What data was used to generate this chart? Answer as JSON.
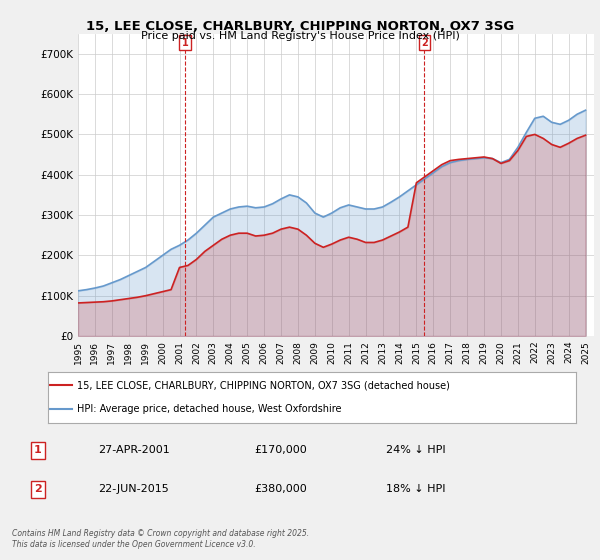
{
  "title": "15, LEE CLOSE, CHARLBURY, CHIPPING NORTON, OX7 3SG",
  "subtitle": "Price paid vs. HM Land Registry's House Price Index (HPI)",
  "bg_color": "#f0f0f0",
  "plot_bg_color": "#ffffff",
  "hpi_color": "#6699cc",
  "price_color": "#cc2222",
  "marker1_label": "1",
  "marker2_label": "2",
  "marker1_date": "27-APR-2001",
  "marker1_price": "£170,000",
  "marker1_pct": "24% ↓ HPI",
  "marker2_date": "22-JUN-2015",
  "marker2_price": "£380,000",
  "marker2_pct": "18% ↓ HPI",
  "legend1": "15, LEE CLOSE, CHARLBURY, CHIPPING NORTON, OX7 3SG (detached house)",
  "legend2": "HPI: Average price, detached house, West Oxfordshire",
  "footer": "Contains HM Land Registry data © Crown copyright and database right 2025.\nThis data is licensed under the Open Government Licence v3.0.",
  "ylim": [
    0,
    750000
  ],
  "yticks": [
    0,
    100000,
    200000,
    300000,
    400000,
    500000,
    600000,
    700000
  ],
  "ytick_labels": [
    "£0",
    "£100K",
    "£200K",
    "£300K",
    "£400K",
    "£500K",
    "£600K",
    "£700K"
  ],
  "xmin": 1995.0,
  "xmax": 2025.5,
  "marker1_x": 2001.32,
  "marker2_x": 2015.47,
  "hpi_x": [
    1995.0,
    1995.5,
    1996.0,
    1996.5,
    1997.0,
    1997.5,
    1998.0,
    1998.5,
    1999.0,
    1999.5,
    2000.0,
    2000.5,
    2001.0,
    2001.5,
    2002.0,
    2002.5,
    2003.0,
    2003.5,
    2004.0,
    2004.5,
    2005.0,
    2005.5,
    2006.0,
    2006.5,
    2007.0,
    2007.5,
    2008.0,
    2008.5,
    2009.0,
    2009.5,
    2010.0,
    2010.5,
    2011.0,
    2011.5,
    2012.0,
    2012.5,
    2013.0,
    2013.5,
    2014.0,
    2014.5,
    2015.0,
    2015.5,
    2016.0,
    2016.5,
    2017.0,
    2017.5,
    2018.0,
    2018.5,
    2019.0,
    2019.5,
    2020.0,
    2020.5,
    2021.0,
    2021.5,
    2022.0,
    2022.5,
    2023.0,
    2023.5,
    2024.0,
    2024.5,
    2025.0
  ],
  "hpi_y": [
    112000,
    115000,
    119000,
    124000,
    132000,
    140000,
    150000,
    160000,
    170000,
    185000,
    200000,
    215000,
    225000,
    238000,
    255000,
    275000,
    295000,
    305000,
    315000,
    320000,
    322000,
    318000,
    320000,
    328000,
    340000,
    350000,
    345000,
    330000,
    305000,
    295000,
    305000,
    318000,
    325000,
    320000,
    315000,
    315000,
    320000,
    332000,
    345000,
    360000,
    375000,
    390000,
    405000,
    420000,
    430000,
    435000,
    438000,
    440000,
    442000,
    440000,
    430000,
    438000,
    468000,
    505000,
    540000,
    545000,
    530000,
    525000,
    535000,
    550000,
    560000
  ],
  "price_x": [
    1995.0,
    1995.5,
    1996.0,
    1996.5,
    1997.0,
    1997.5,
    1998.0,
    1998.5,
    1999.0,
    1999.5,
    2000.0,
    2000.5,
    2001.0,
    2001.5,
    2002.0,
    2002.5,
    2003.0,
    2003.5,
    2004.0,
    2004.5,
    2005.0,
    2005.5,
    2006.0,
    2006.5,
    2007.0,
    2007.5,
    2008.0,
    2008.5,
    2009.0,
    2009.5,
    2010.0,
    2010.5,
    2011.0,
    2011.5,
    2012.0,
    2012.5,
    2013.0,
    2013.5,
    2014.0,
    2014.5,
    2015.0,
    2015.5,
    2016.0,
    2016.5,
    2017.0,
    2017.5,
    2018.0,
    2018.5,
    2019.0,
    2019.5,
    2020.0,
    2020.5,
    2021.0,
    2021.5,
    2022.0,
    2022.5,
    2023.0,
    2023.5,
    2024.0,
    2024.5,
    2025.0
  ],
  "price_y": [
    82000,
    83000,
    84000,
    85000,
    87000,
    90000,
    93000,
    96000,
    100000,
    105000,
    110000,
    115000,
    170000,
    175000,
    190000,
    210000,
    225000,
    240000,
    250000,
    255000,
    255000,
    248000,
    250000,
    255000,
    265000,
    270000,
    265000,
    250000,
    230000,
    220000,
    228000,
    238000,
    245000,
    240000,
    232000,
    232000,
    238000,
    248000,
    258000,
    270000,
    380000,
    395000,
    410000,
    425000,
    435000,
    438000,
    440000,
    442000,
    444000,
    440000,
    428000,
    435000,
    460000,
    495000,
    500000,
    490000,
    475000,
    468000,
    478000,
    490000,
    498000
  ]
}
